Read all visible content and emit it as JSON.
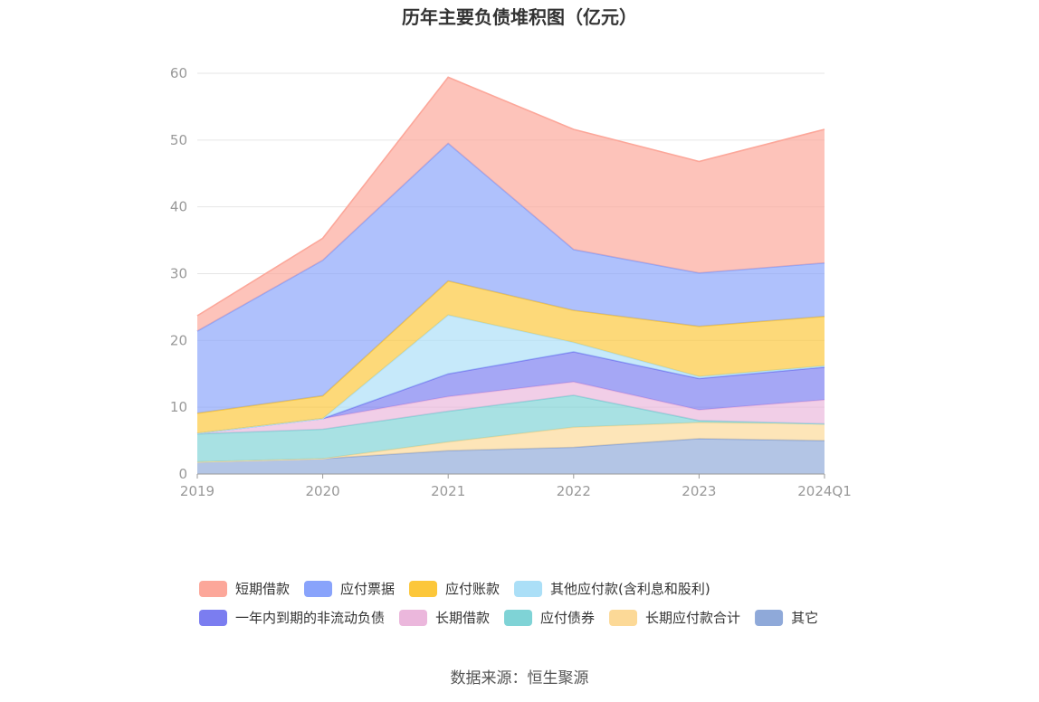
{
  "chart_data": {
    "type": "area",
    "stacked": true,
    "title": "历年主要负债堆积图（亿元）",
    "categories": [
      "2019",
      "2020",
      "2021",
      "2022",
      "2023",
      "2024Q1"
    ],
    "ylim": [
      0,
      60
    ],
    "yticks": [
      0,
      10,
      20,
      30,
      40,
      50,
      60
    ],
    "grid": "horizontal",
    "legend_position": "bottom",
    "series": [
      {
        "name": "其它",
        "color": "#8fa9d9",
        "values": [
          1.8,
          2.3,
          3.5,
          4.0,
          5.3,
          5.0
        ]
      },
      {
        "name": "长期应付款合计",
        "color": "#fcd997",
        "values": [
          0.0,
          0.0,
          1.3,
          3.0,
          2.4,
          2.5
        ]
      },
      {
        "name": "应付债券",
        "color": "#7fd3d6",
        "values": [
          4.2,
          4.4,
          4.6,
          4.8,
          0.3,
          0.0
        ]
      },
      {
        "name": "长期借款",
        "color": "#ebb7dc",
        "values": [
          0.1,
          1.6,
          2.2,
          2.0,
          1.6,
          3.6
        ]
      },
      {
        "name": "一年内到期的非流动负债",
        "color": "#7b7df0",
        "values": [
          0.0,
          0.0,
          3.4,
          4.5,
          4.7,
          4.9
        ]
      },
      {
        "name": "其他应付款(含利息和股利)",
        "color": "#abdff7",
        "values": [
          0.0,
          0.0,
          8.8,
          1.4,
          0.3,
          0.2
        ]
      },
      {
        "name": "应付账款",
        "color": "#fcc73a",
        "values": [
          3.0,
          3.4,
          5.1,
          4.8,
          7.5,
          7.4
        ]
      },
      {
        "name": "应付票据",
        "color": "#89a3fb",
        "values": [
          12.3,
          20.3,
          20.6,
          9.1,
          8.0,
          8.0
        ]
      },
      {
        "name": "短期借款",
        "color": "#fca79a",
        "values": [
          2.3,
          3.3,
          9.9,
          18.0,
          16.7,
          20.0
        ]
      }
    ],
    "legend_order": [
      "短期借款",
      "应付票据",
      "应付账款",
      "其他应付款(含利息和股利)",
      "一年内到期的非流动负债",
      "长期借款",
      "应付债券",
      "长期应付款合计",
      "其它"
    ]
  },
  "source": "数据来源：恒生聚源"
}
